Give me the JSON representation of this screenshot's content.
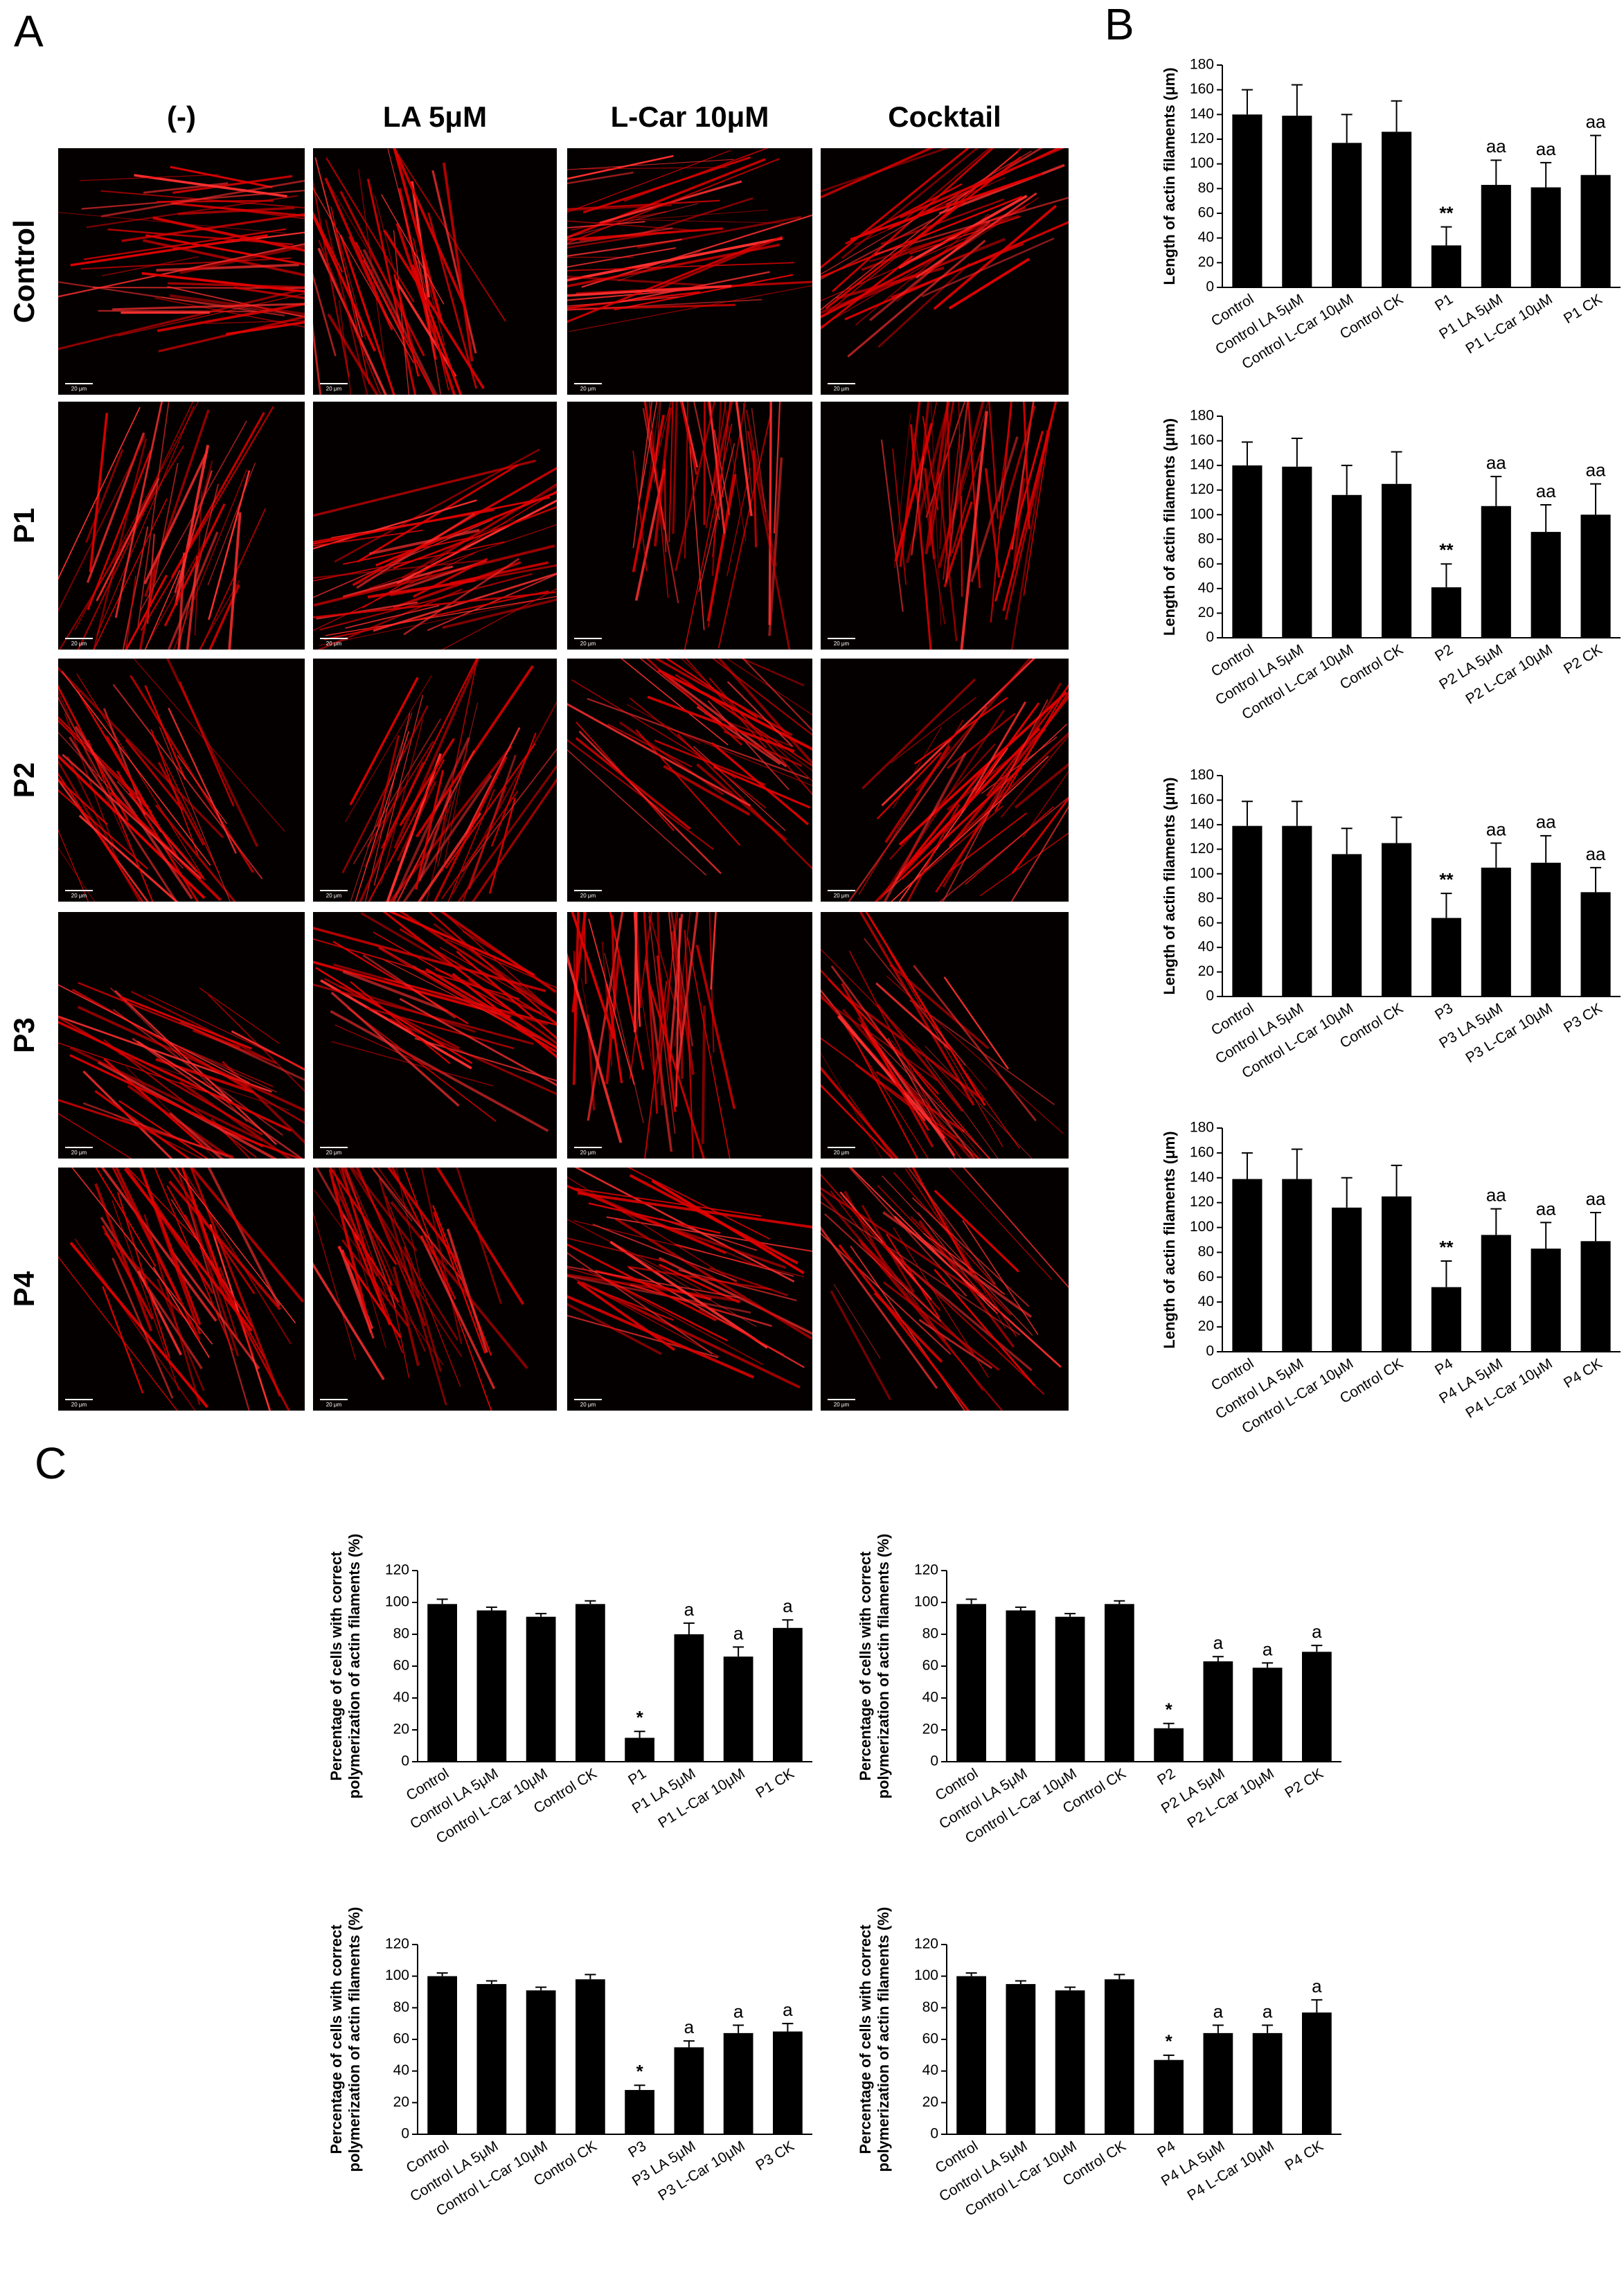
{
  "panels": {
    "labels": [
      "A",
      "B",
      "C"
    ],
    "A": {
      "columns": [
        "(-)",
        "LA 5μM",
        "L-Car 10μM",
        "Cocktail"
      ],
      "rows": [
        "Control",
        "P1",
        "P2",
        "P3",
        "P4"
      ],
      "scale_bar": "20 μm"
    }
  },
  "chart_data": [
    {
      "type": "bar",
      "ylabel": [
        "Length of actin filaments (μm)"
      ],
      "categories": [
        "Control",
        "Control LA 5μM",
        "Control L-Car 10μM",
        "Control CK",
        "P1",
        "P1 LA 5μM",
        "P1 L-Car 10μM",
        "P1 CK"
      ],
      "values": [
        140,
        139,
        117,
        126,
        34,
        83,
        81,
        91
      ],
      "errors": [
        20,
        25,
        23,
        25,
        15,
        20,
        20,
        32
      ],
      "annotations": [
        null,
        null,
        null,
        null,
        "**",
        "aa",
        "aa",
        "aa"
      ],
      "color": "#000000",
      "ylim": [
        0,
        180
      ],
      "yticks": [
        0,
        20,
        40,
        60,
        80,
        100,
        120,
        140,
        160,
        180
      ]
    },
    {
      "type": "bar",
      "ylabel": [
        "Length of actin filaments (μm)"
      ],
      "categories": [
        "Control",
        "Control LA 5μM",
        "Control L-Car 10μM",
        "Control CK",
        "P2",
        "P2 LA 5μM",
        "P2 L-Car 10μM",
        "P2 CK"
      ],
      "values": [
        140,
        139,
        116,
        125,
        41,
        107,
        86,
        100
      ],
      "errors": [
        19,
        23,
        24,
        26,
        19,
        24,
        22,
        25
      ],
      "annotations": [
        null,
        null,
        null,
        null,
        "**",
        "aa",
        "aa",
        "aa"
      ],
      "color": "#000000",
      "ylim": [
        0,
        180
      ],
      "yticks": [
        0,
        20,
        40,
        60,
        80,
        100,
        120,
        140,
        160,
        180
      ]
    },
    {
      "type": "bar",
      "ylabel": [
        "Length of actin filaments (μm)"
      ],
      "categories": [
        "Control",
        "Control LA 5μM",
        "Control L-Car 10μM",
        "Control CK",
        "P3",
        "P3 LA 5μM",
        "P3 L-Car 10μM",
        "P3 CK"
      ],
      "values": [
        139,
        139,
        116,
        125,
        64,
        105,
        109,
        85
      ],
      "errors": [
        20,
        20,
        21,
        21,
        20,
        20,
        22,
        20
      ],
      "annotations": [
        null,
        null,
        null,
        null,
        "**",
        "aa",
        "aa",
        "aa"
      ],
      "color": "#000000",
      "ylim": [
        0,
        180
      ],
      "yticks": [
        0,
        20,
        40,
        60,
        80,
        100,
        120,
        140,
        160,
        180
      ]
    },
    {
      "type": "bar",
      "ylabel": [
        "Length of actin filaments (μm)"
      ],
      "categories": [
        "Control",
        "Control LA 5μM",
        "Control L-Car 10μM",
        "Control CK",
        "P4",
        "P4 LA 5μM",
        "P4 L-Car 10μM",
        "P4 CK"
      ],
      "values": [
        139,
        139,
        116,
        125,
        52,
        94,
        83,
        89
      ],
      "errors": [
        21,
        24,
        24,
        25,
        21,
        21,
        21,
        23
      ],
      "annotations": [
        null,
        null,
        null,
        null,
        "**",
        "aa",
        "aa",
        "aa"
      ],
      "color": "#000000",
      "ylim": [
        0,
        180
      ],
      "yticks": [
        0,
        20,
        40,
        60,
        80,
        100,
        120,
        140,
        160,
        180
      ]
    },
    {
      "type": "bar",
      "ylabel": [
        "Percentage of cells with correct",
        "polymerization of actin filaments (%)"
      ],
      "categories": [
        "Control",
        "Control LA 5μM",
        "Control L-Car 10μM",
        "Control CK",
        "P1",
        "P1 LA 5μM",
        "P1 L-Car 10μM",
        "P1 CK"
      ],
      "values": [
        99,
        95,
        91,
        99,
        15,
        80,
        66,
        84
      ],
      "errors": [
        3,
        2,
        2,
        2,
        4,
        7,
        6,
        5
      ],
      "annotations": [
        null,
        null,
        null,
        null,
        "*",
        "a",
        "a",
        "a"
      ],
      "color": "#000000",
      "ylim": [
        0,
        120
      ],
      "yticks": [
        0,
        20,
        40,
        60,
        80,
        100,
        120
      ]
    },
    {
      "type": "bar",
      "ylabel": [
        "Percentage of cells with correct",
        "polymerization of actin filaments (%)"
      ],
      "categories": [
        "Control",
        "Control LA 5μM",
        "Control L-Car 10μM",
        "Control CK",
        "P2",
        "P2 LA 5μM",
        "P2 L-Car 10μM",
        "P2 CK"
      ],
      "values": [
        99,
        95,
        91,
        99,
        21,
        63,
        59,
        69
      ],
      "errors": [
        3,
        2,
        2,
        2,
        3,
        3,
        3,
        4
      ],
      "annotations": [
        null,
        null,
        null,
        null,
        "*",
        "a",
        "a",
        "a"
      ],
      "color": "#000000",
      "ylim": [
        0,
        120
      ],
      "yticks": [
        0,
        20,
        40,
        60,
        80,
        100,
        120
      ]
    },
    {
      "type": "bar",
      "ylabel": [
        "Percentage of cells with correct",
        "polymerization of actin filaments (%)"
      ],
      "categories": [
        "Control",
        "Control LA 5μM",
        "Control L-Car 10μM",
        "Control CK",
        "P3",
        "P3 LA 5μM",
        "P3 L-Car 10μM",
        "P3 CK"
      ],
      "values": [
        100,
        95,
        91,
        98,
        28,
        55,
        64,
        65
      ],
      "errors": [
        2,
        2,
        2,
        3,
        3,
        4,
        5,
        5
      ],
      "annotations": [
        null,
        null,
        null,
        null,
        "*",
        "a",
        "a",
        "a"
      ],
      "color": "#000000",
      "ylim": [
        0,
        120
      ],
      "yticks": [
        0,
        20,
        40,
        60,
        80,
        100,
        120
      ]
    },
    {
      "type": "bar",
      "ylabel": [
        "Percentage of cells with correct",
        "polymerization of actin filaments (%)"
      ],
      "categories": [
        "Control",
        "Control LA 5μM",
        "Control L-Car 10μM",
        "Control CK",
        "P4",
        "P4 LA 5μM",
        "P4 L-Car 10μM",
        "P4 CK"
      ],
      "values": [
        100,
        95,
        91,
        98,
        47,
        64,
        64,
        77
      ],
      "errors": [
        2,
        2,
        2,
        3,
        3,
        5,
        5,
        8
      ],
      "annotations": [
        null,
        null,
        null,
        null,
        "*",
        "a",
        "a",
        "a"
      ],
      "color": "#000000",
      "ylim": [
        0,
        120
      ],
      "yticks": [
        0,
        20,
        40,
        60,
        80,
        100,
        120
      ]
    }
  ]
}
